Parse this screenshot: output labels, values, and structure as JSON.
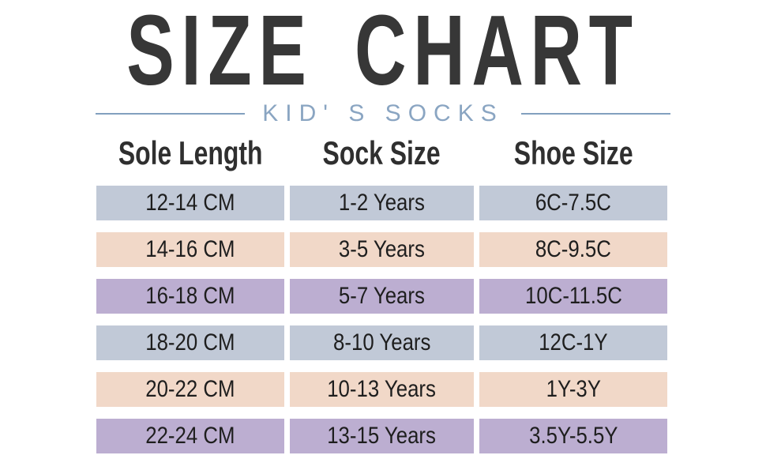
{
  "title": "SIZE CHART",
  "subtitle": "KID' S SOCKS",
  "colors": {
    "title_text": "#373737",
    "subtitle_text": "#8aa5c2",
    "divider_line": "#82a0bf",
    "header_text": "#2f2f2f",
    "cell_text": "#1e1e1e",
    "row_blue": "#c1c9d7",
    "row_peach": "#f1d8c8",
    "row_purple": "#bcaed1"
  },
  "table": {
    "columns": [
      "Sole Length",
      "Sock Size",
      "Shoe Size"
    ],
    "rows": [
      {
        "sole_length": "12-14 CM",
        "sock_size": "1-2 Years",
        "shoe_size": "6C-7.5C",
        "color": "row_blue"
      },
      {
        "sole_length": "14-16 CM",
        "sock_size": "3-5 Years",
        "shoe_size": "8C-9.5C",
        "color": "row_peach"
      },
      {
        "sole_length": "16-18 CM",
        "sock_size": "5-7 Years",
        "shoe_size": "10C-11.5C",
        "color": "row_purple"
      },
      {
        "sole_length": "18-20 CM",
        "sock_size": "8-10 Years",
        "shoe_size": "12C-1Y",
        "color": "row_blue"
      },
      {
        "sole_length": "20-22 CM",
        "sock_size": "10-13 Years",
        "shoe_size": "1Y-3Y",
        "color": "row_peach"
      },
      {
        "sole_length": "22-24 CM",
        "sock_size": "13-15 Years",
        "shoe_size": "3.5Y-5.5Y",
        "color": "row_purple"
      }
    ]
  },
  "chart_data": {
    "type": "table",
    "title": "SIZE CHART",
    "subtitle": "KID' S SOCKS",
    "columns": [
      "Sole Length",
      "Sock Size",
      "Shoe Size"
    ],
    "rows": [
      [
        "12-14 CM",
        "1-2 Years",
        "6C-7.5C"
      ],
      [
        "14-16 CM",
        "3-5 Years",
        "8C-9.5C"
      ],
      [
        "16-18 CM",
        "5-7 Years",
        "10C-11.5C"
      ],
      [
        "18-20 CM",
        "8-10 Years",
        "12C-1Y"
      ],
      [
        "20-22 CM",
        "10-13 Years",
        "1Y-3Y"
      ],
      [
        "22-24 CM",
        "13-15 Years",
        "3.5Y-5.5Y"
      ]
    ],
    "row_fill_cycle": [
      "#c1c9d7",
      "#f1d8c8",
      "#bcaed1"
    ]
  }
}
